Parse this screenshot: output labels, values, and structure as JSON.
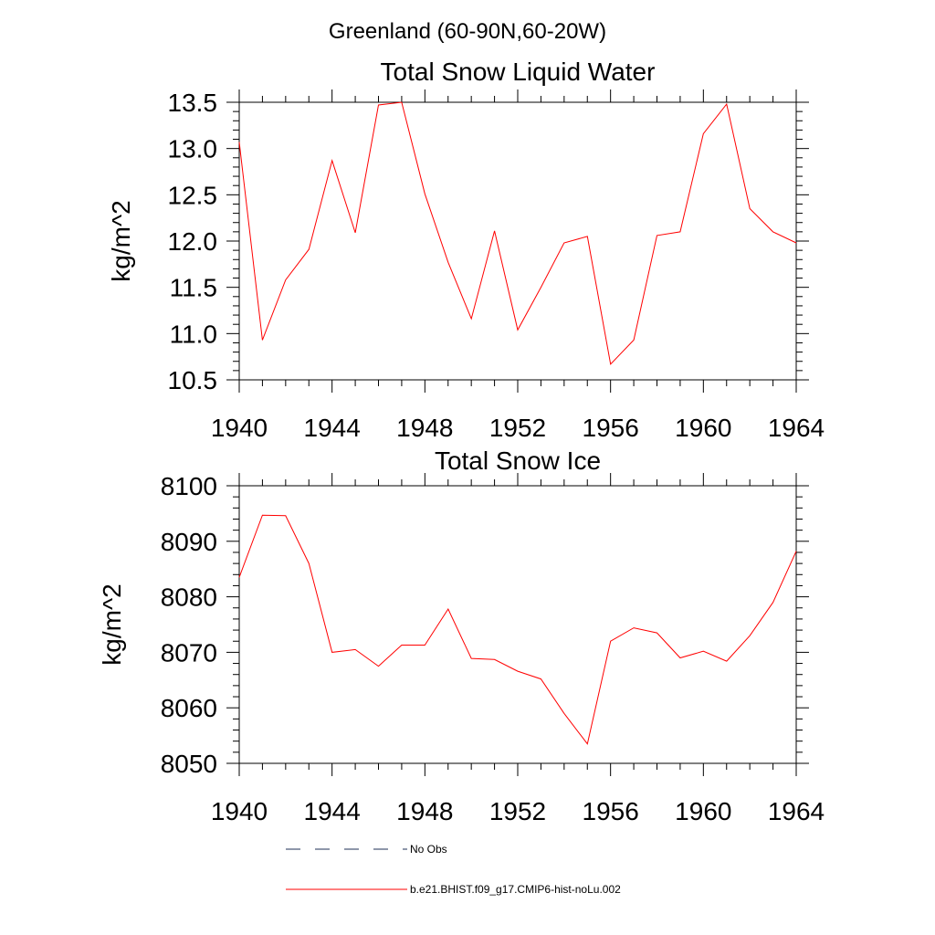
{
  "suptitle": "Greenland (60-90N,60-20W)",
  "chart_data": [
    {
      "type": "line",
      "title": "Total Snow Liquid Water",
      "ylabel": "kg/m^2",
      "xlabel": "",
      "xlim": [
        1940,
        1964
      ],
      "ylim": [
        10.5,
        13.5
      ],
      "xticks": [
        1940,
        1944,
        1948,
        1952,
        1956,
        1960,
        1964
      ],
      "yticks": [
        "10.5",
        "11.0",
        "11.5",
        "12.0",
        "12.5",
        "13.0",
        "13.5"
      ],
      "grid": false,
      "series": [
        {
          "color": "#ff0000",
          "x": [
            1940,
            1941,
            1942,
            1943,
            1944,
            1945,
            1946,
            1947,
            1948,
            1949,
            1950,
            1951,
            1952,
            1953,
            1954,
            1955,
            1956,
            1957,
            1958,
            1959,
            1960,
            1961,
            1962,
            1963,
            1964
          ],
          "y": [
            13.07,
            10.93,
            11.58,
            11.91,
            12.87,
            12.09,
            13.47,
            13.5,
            12.51,
            11.77,
            11.16,
            12.11,
            11.04,
            11.5,
            11.98,
            12.05,
            10.67,
            10.93,
            12.06,
            12.1,
            13.16,
            13.48,
            12.35,
            12.1,
            11.98
          ]
        }
      ]
    },
    {
      "type": "line",
      "title": "Total Snow Ice",
      "ylabel": "kg/m^2",
      "xlabel": "",
      "xlim": [
        1940,
        1964
      ],
      "ylim": [
        8050,
        8100
      ],
      "xticks": [
        1940,
        1944,
        1948,
        1952,
        1956,
        1960,
        1964
      ],
      "yticks": [
        "8050",
        "8060",
        "8070",
        "8080",
        "8090",
        "8100"
      ],
      "grid": false,
      "series": [
        {
          "color": "#ff0000",
          "x": [
            1940,
            1941,
            1942,
            1943,
            1944,
            1945,
            1946,
            1947,
            1948,
            1949,
            1950,
            1951,
            1952,
            1953,
            1954,
            1955,
            1956,
            1957,
            1958,
            1959,
            1960,
            1961,
            1962,
            1963,
            1964
          ],
          "y": [
            8083.5,
            8094.7,
            8094.6,
            8086.0,
            8070.0,
            8070.5,
            8067.5,
            8071.3,
            8071.3,
            8077.8,
            8068.9,
            8068.7,
            8066.6,
            8065.2,
            8059.0,
            8053.5,
            8072.0,
            8074.4,
            8073.5,
            8069.0,
            8070.2,
            8068.4,
            8073.0,
            8079.0,
            8088.2
          ]
        }
      ]
    }
  ],
  "legend": {
    "placement": "bottom",
    "items": [
      {
        "label": "No Obs",
        "color": "#1e2f55",
        "style": "dashed"
      },
      {
        "label": "b.e21.BHIST.f09_g17.CMIP6-hist-noLu.002",
        "color": "#ff0000",
        "style": "solid"
      }
    ]
  }
}
